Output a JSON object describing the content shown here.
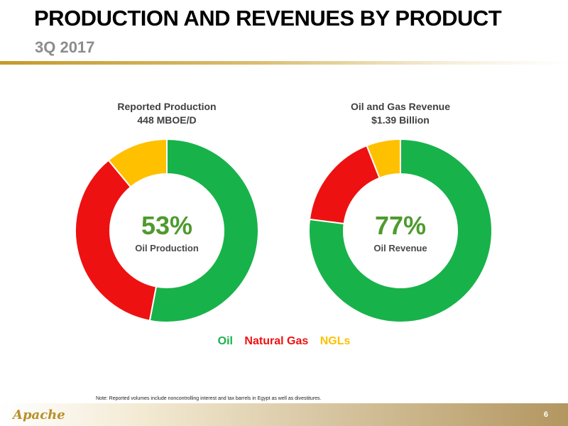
{
  "header": {
    "title": "PRODUCTION AND REVENUES BY PRODUCT",
    "subtitle": "3Q 2017"
  },
  "colors": {
    "oil": "#18b24a",
    "natural_gas": "#ee1111",
    "ngls": "#ffc000",
    "center_text": "#4f9a2f"
  },
  "charts": [
    {
      "heading_line1": "Reported Production",
      "heading_line2": "448 MBOE/D",
      "center_value": "53%",
      "center_label": "Oil Production"
    },
    {
      "heading_line1": "Oil and Gas Revenue",
      "heading_line2": "$1.39 Billion",
      "center_value": "77%",
      "center_label": "Oil Revenue"
    }
  ],
  "chart_data": [
    {
      "type": "pie",
      "title": "Reported Production",
      "categories": [
        "Oil",
        "Natural Gas",
        "NGLs"
      ],
      "values": [
        53,
        36,
        11
      ]
    },
    {
      "type": "pie",
      "title": "Oil and Gas Revenue",
      "categories": [
        "Oil",
        "Natural Gas",
        "NGLs"
      ],
      "values": [
        77,
        17,
        6
      ]
    }
  ],
  "legend": {
    "oil": "Oil",
    "natural_gas": "Natural Gas",
    "ngls": "NGLs",
    "placement": "bottom-center"
  },
  "note": "Note: Reported volumes include noncontrolling interest and tax barrels in Egypt as well as divestitures.",
  "footer": {
    "logo": "Apache",
    "page_number": "6"
  }
}
